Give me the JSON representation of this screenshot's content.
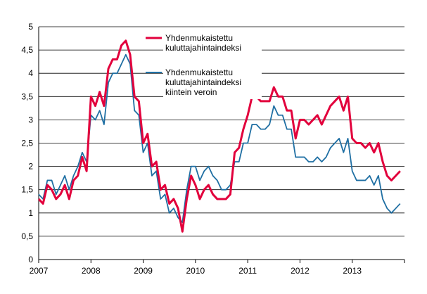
{
  "chart_data": {
    "type": "line",
    "title": "",
    "xlabel": "",
    "ylabel": "",
    "x_start": "2007-01",
    "x_frequency": "monthly",
    "xlim": [
      "2007-01",
      "2014-01"
    ],
    "ylim": [
      0,
      5
    ],
    "y_ticks": [
      "0",
      "0,5",
      "1",
      "1,5",
      "2",
      "2,5",
      "3",
      "3,5",
      "4",
      "4,5",
      "5"
    ],
    "y_tick_values": [
      0,
      0.5,
      1,
      1.5,
      2,
      2.5,
      3,
      3.5,
      4,
      4.5,
      5
    ],
    "x_ticks": [
      "2007",
      "2008",
      "2009",
      "2010",
      "2011",
      "2012",
      "2013"
    ],
    "grid": "horizontal",
    "legend_position": "top-center",
    "series": [
      {
        "name": "Yhdenmukaistettu kuluttajahintaindeksi",
        "legend_lines": [
          "Yhdenmukaistettu",
          "kuluttajahintaindeksi"
        ],
        "color": "#e2003c",
        "values": [
          1.3,
          1.2,
          1.6,
          1.5,
          1.3,
          1.4,
          1.6,
          1.3,
          1.7,
          1.8,
          2.2,
          1.9,
          3.5,
          3.3,
          3.6,
          3.3,
          4.1,
          4.3,
          4.3,
          4.6,
          4.7,
          4.4,
          3.5,
          3.4,
          2.5,
          2.7,
          2.0,
          2.1,
          1.5,
          1.6,
          1.2,
          1.3,
          1.1,
          0.6,
          1.3,
          1.8,
          1.6,
          1.3,
          1.5,
          1.6,
          1.4,
          1.3,
          1.3,
          1.3,
          1.4,
          2.3,
          2.4,
          2.8,
          3.1,
          3.5,
          3.5,
          3.4,
          3.4,
          3.4,
          3.7,
          3.5,
          3.5,
          3.2,
          3.2,
          2.6,
          3.0,
          3.0,
          2.9,
          3.0,
          3.1,
          2.9,
          3.1,
          3.3,
          3.4,
          3.5,
          3.2,
          3.5,
          2.6,
          2.5,
          2.5,
          2.4,
          2.5,
          2.3,
          2.5,
          2.1,
          1.8,
          1.7,
          1.8,
          1.9
        ]
      },
      {
        "name": "Yhdenmukaistettu kuluttajahintaindeksi kiintein veroin",
        "legend_lines": [
          "Yhdenmukaistettu",
          "kuluttajahintaindeksi",
          "kiintein veroin"
        ],
        "color": "#1f6fa3",
        "values": [
          1.4,
          1.3,
          1.7,
          1.7,
          1.4,
          1.6,
          1.8,
          1.5,
          1.8,
          2.0,
          2.3,
          2.1,
          3.1,
          3.0,
          3.2,
          2.9,
          3.8,
          4.0,
          4.0,
          4.2,
          4.4,
          4.2,
          3.2,
          3.1,
          2.3,
          2.5,
          1.8,
          1.9,
          1.3,
          1.4,
          1.0,
          1.1,
          0.9,
          0.8,
          1.5,
          2.0,
          2.0,
          1.7,
          1.9,
          2.0,
          1.8,
          1.7,
          1.5,
          1.5,
          1.6,
          2.1,
          2.1,
          2.5,
          2.5,
          2.9,
          2.9,
          2.8,
          2.8,
          2.9,
          3.3,
          3.1,
          3.1,
          2.8,
          2.8,
          2.2,
          2.2,
          2.2,
          2.1,
          2.1,
          2.2,
          2.1,
          2.2,
          2.4,
          2.5,
          2.6,
          2.3,
          2.6,
          1.9,
          1.7,
          1.7,
          1.7,
          1.8,
          1.6,
          1.8,
          1.3,
          1.1,
          1.0,
          1.1,
          1.2
        ]
      }
    ]
  }
}
